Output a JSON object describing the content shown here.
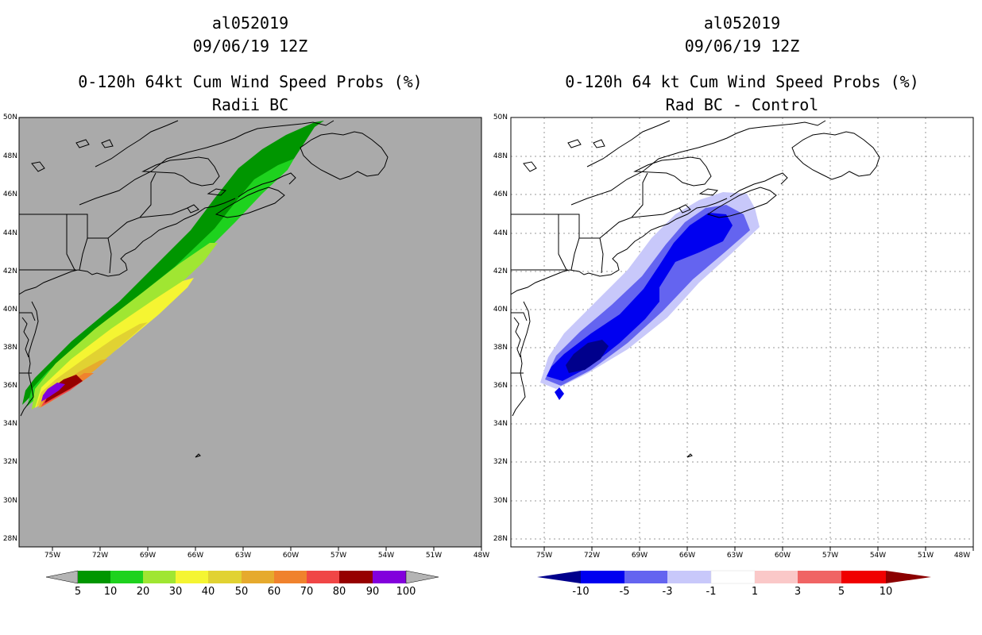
{
  "left": {
    "title_line1": "al052019",
    "title_line2": "09/06/19 12Z",
    "title_line3": "0-120h 64kt Cum Wind Speed Probs (%)",
    "title_line4": "Radii BC",
    "background_color": "#aaaaaa",
    "colorbar": {
      "labels": [
        "5",
        "10",
        "20",
        "30",
        "40",
        "50",
        "60",
        "70",
        "80",
        "90",
        "100"
      ],
      "colors": [
        "#b4b4b4",
        "#009600",
        "#1ed21e",
        "#a0e632",
        "#f5f532",
        "#e1d232",
        "#e6aa2d",
        "#f0822d",
        "#f04646",
        "#960000",
        "#8200dc",
        "#b4b4b4"
      ]
    }
  },
  "right": {
    "title_line1": "al052019",
    "title_line2": "09/06/19 12Z",
    "title_line3": "0-120h 64 kt Cum Wind Speed Probs (%)",
    "title_line4": "Rad BC - Control",
    "background_color": "#ffffff",
    "colorbar": {
      "labels": [
        "-10",
        "-5",
        "-3",
        "-1",
        "1",
        "3",
        "5",
        "10"
      ],
      "colors": [
        "#00008c",
        "#0000f0",
        "#6464f0",
        "#c8c8fa",
        "#ffffff",
        "#fac8c8",
        "#f06464",
        "#f00000",
        "#8c0000"
      ]
    }
  },
  "axes": {
    "lat_labels": [
      "50N",
      "48N",
      "46N",
      "44N",
      "42N",
      "40N",
      "38N",
      "36N",
      "34N",
      "32N",
      "30N",
      "28N"
    ],
    "lon_labels": [
      "75W",
      "72W",
      "69W",
      "66W",
      "63W",
      "60W",
      "57W",
      "54W",
      "51W",
      "48W"
    ]
  }
}
